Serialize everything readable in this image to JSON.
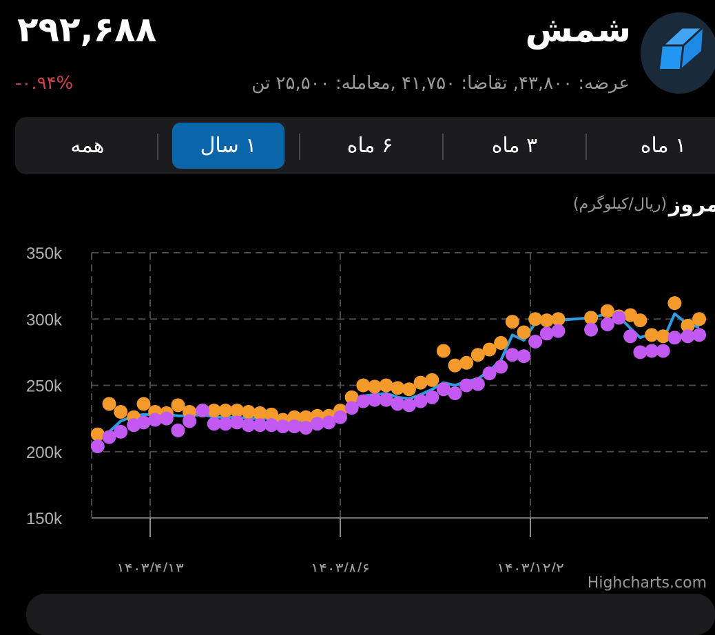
{
  "header": {
    "title": "شمش",
    "price": "۲۹۲,۶۸۸",
    "change": "-۰.۹۴%",
    "change_color": "#d2404a",
    "subtitle": "عرضه: ۴۳,۸۰۰, تقاضا: ۴۱,۷۵۰ ,معامله: ۲۵,۵۰۰ تن",
    "logo_icon": "gold-bar-icon"
  },
  "tabs": [
    {
      "label": "۱ ماه",
      "active": false
    },
    {
      "label": "۳ ماه",
      "active": false
    },
    {
      "label": "۶ ماه",
      "active": false
    },
    {
      "label": "۱ سال",
      "active": true
    },
    {
      "label": "همه",
      "active": false
    }
  ],
  "accent_color": "#0a66a8",
  "chart_section": {
    "title": "مروز",
    "unit": "(ریال/کیلوگرم)",
    "credit": "Highcharts.com"
  },
  "chart_data": {
    "type": "line",
    "title": "",
    "xlabel": "",
    "ylabel": "",
    "ylim": [
      150000,
      350000
    ],
    "y_ticks": [
      150000,
      200000,
      250000,
      300000,
      350000
    ],
    "y_tick_labels": [
      "150k",
      "200k",
      "250k",
      "300k",
      "350k"
    ],
    "x_ticks": [
      "1403/4/13",
      "1403/8/6",
      "1403/12/2"
    ],
    "x_tick_labels": [
      "۱۴۰۳/۴/۱۳",
      "۱۴۰۳/۸/۶",
      "۱۴۰۳/۱۲/۲"
    ],
    "grid": true,
    "legend": "none",
    "x": [
      "1403/3/12",
      "1403/3/19",
      "1403/3/26",
      "1403/4/3",
      "1403/4/9",
      "1403/4/16",
      "1403/4/23",
      "1403/4/30",
      "1403/5/6",
      "1403/5/14",
      "1403/5/21",
      "1403/5/28",
      "1403/6/4",
      "1403/6/11",
      "1403/6/18",
      "1403/6/25",
      "1403/7/1",
      "1403/7/8",
      "1403/7/15",
      "1403/7/22",
      "1403/7/29",
      "1403/8/6",
      "1403/8/13",
      "1403/8/20",
      "1403/8/27",
      "1403/9/4",
      "1403/9/11",
      "1403/9/18",
      "1403/9/25",
      "1403/10/2",
      "1403/10/9",
      "1403/10/16",
      "1403/10/23",
      "1403/10/30",
      "1403/11/7",
      "1403/11/14",
      "1403/11/21",
      "1403/11/28",
      "1403/12/5",
      "1403/12/12",
      "1403/12/19",
      "1404/1/9",
      "1404/1/19",
      "1404/1/26",
      "1404/2/2",
      "1404/2/8",
      "1404/2/15",
      "1404/2/22",
      "1404/2/29",
      "1404/3/6",
      "1404/3/13"
    ],
    "series": [
      {
        "style": "line",
        "color": "#2f9be0",
        "values": [
          210000,
          215000,
          223000,
          227000,
          228000,
          228000,
          228000,
          227000,
          227000,
          228000,
          226000,
          226000,
          226000,
          225000,
          225000,
          225000,
          223000,
          223000,
          222000,
          224000,
          225000,
          229000,
          237000,
          242000,
          243000,
          244000,
          241000,
          240000,
          243000,
          247000,
          252000,
          250000,
          253000,
          255000,
          261000,
          269000,
          288000,
          284000,
          297000,
          298000,
          299000,
          301000,
          304000,
          302000,
          293000,
          286000,
          289000,
          284000,
          304000,
          296000,
          294000
        ]
      },
      {
        "style": "markers",
        "color": "#f39a2b",
        "values": [
          213000,
          236000,
          230000,
          226000,
          236000,
          230000,
          229000,
          235000,
          230000,
          231000,
          231000,
          231000,
          231000,
          230000,
          229000,
          228000,
          224000,
          226000,
          226000,
          227000,
          227000,
          231000,
          241000,
          250000,
          249000,
          250000,
          248000,
          247000,
          252000,
          254000,
          276000,
          265000,
          267000,
          273000,
          277000,
          282000,
          298000,
          290000,
          300000,
          299000,
          300000,
          301000,
          306000,
          302000,
          303000,
          299000,
          288000,
          287000,
          312000,
          295000,
          300000
        ]
      },
      {
        "style": "markers",
        "color": "#c159f2",
        "values": [
          204000,
          211000,
          215000,
          220000,
          222000,
          224000,
          225000,
          216000,
          223000,
          231000,
          221000,
          221000,
          222000,
          220000,
          220000,
          220000,
          219000,
          219000,
          218000,
          221000,
          222000,
          226000,
          233000,
          238000,
          239000,
          239000,
          236000,
          235000,
          238000,
          241000,
          247000,
          244000,
          250000,
          251000,
          259000,
          264000,
          273000,
          272000,
          283000,
          289000,
          291000,
          292000,
          296000,
          301000,
          287000,
          275000,
          276000,
          276000,
          286000,
          287000,
          288000
        ]
      }
    ]
  }
}
